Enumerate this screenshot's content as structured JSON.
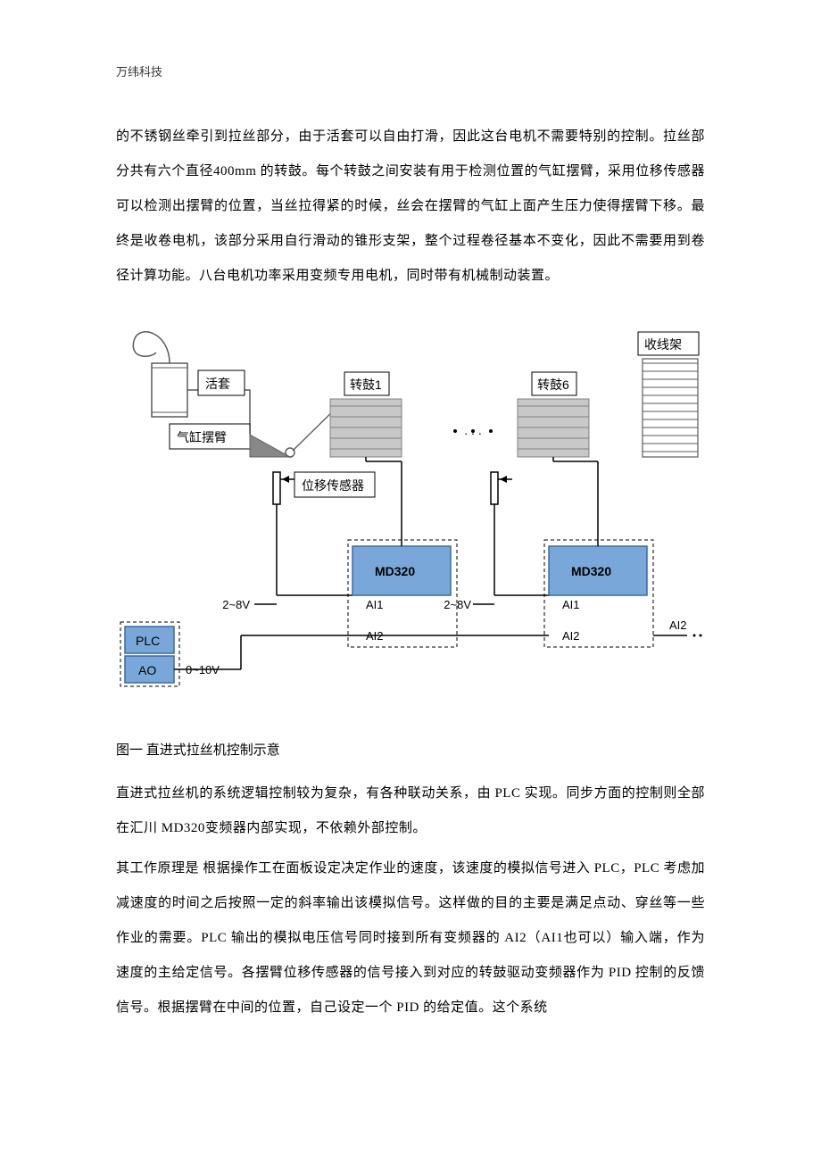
{
  "header": "万纬科技",
  "paragraphs": {
    "p1": "的不锈钢丝牵引到拉丝部分，由于活套可以自由打滑，因此这台电机不需要特别的控制。拉丝部分共有六个直径400mm 的转鼓。每个转鼓之间安装有用于检测位置的气缸摆臂，采用位移传感器可以检测出摆臂的位置，当丝拉得紧的时候，丝会在摆臂的气缸上面产生压力使得摆臂下移。最终是收卷电机，该部分采用自行滑动的锥形支架，整个过程卷径基本不变化，因此不需要用到卷径计算功能。八台电机功率采用变频专用电机，同时带有机械制动装置。",
    "p2": "直进式拉丝机的系统逻辑控制较为复杂，有各种联动关系，由 PLC 实现。同步方面的控制则全部在汇川 MD320变频器内部实现，不依赖外部控制。",
    "p3": "其工作原理是 根据操作工在面板设定决定作业的速度，该速度的模拟信号进入 PLC，PLC 考虑加减速度的时间之后按照一定的斜率输出该模拟信号。这样做的目的主要是满足点动、穿丝等一些作业的需要。PLC 输出的模拟电压信号同时接到所有变频器的 AI2（AI1也可以）输入端，作为速度的主给定信号。各摆臂位移传感器的信号接入到对应的转鼓驱动变频器作为 PID 控制的反馈信号。根据摆臂在中间的位置，自己设定一个 PID 的给定值。这个系统"
  },
  "caption": "图一  直进式拉丝机控制示意",
  "diagram": {
    "labels": {
      "huotao": "活套",
      "qigangbai": "气缸摆臂",
      "zhuangu1": "转鼓1",
      "zhuangu6": "转鼓6",
      "shouxian": "收线架",
      "weiyi": "位移传感器",
      "md320": "MD320",
      "ai1": "AI1",
      "ai2": "AI2",
      "plc": "PLC",
      "ao": "AO",
      "v28": "2~8V",
      "v010": "0~10V",
      "dots": ". . ."
    },
    "colors": {
      "border": "#000000",
      "text": "#000000",
      "huotao_stroke": "#5a5a5a",
      "arm_stroke": "#606060",
      "drum_fill": "#c8c8c8",
      "drum_stroke": "#808080",
      "plc_fill": "#7aa7d9",
      "plc_stroke": "#3a6aa0",
      "md_fill": "#7aa7d9",
      "md_stroke": "#3a6aa0",
      "label_bg": "#ffffff",
      "shouxian_stroke": "#5a5a5a",
      "dash": "4 3"
    },
    "fontsizes": {
      "label": 14,
      "small": 13
    }
  }
}
